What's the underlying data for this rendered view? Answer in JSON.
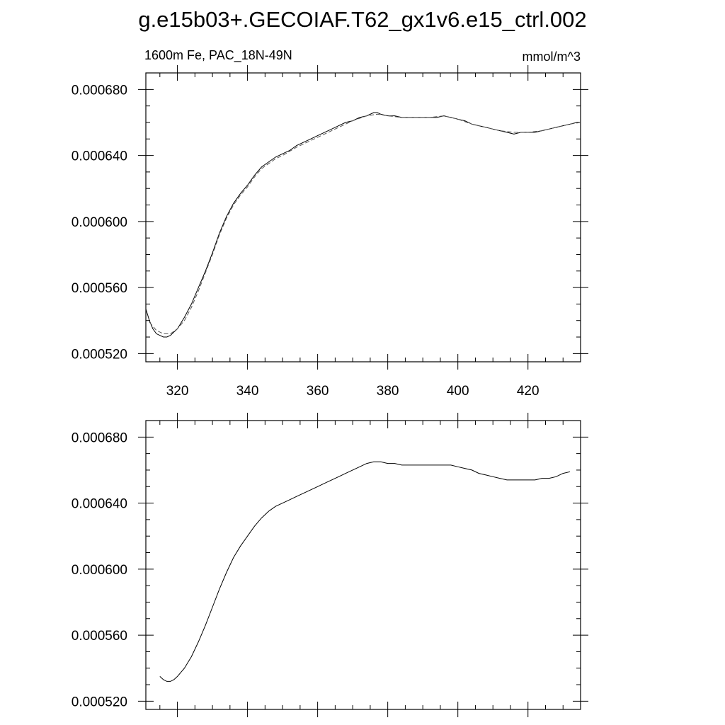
{
  "figure": {
    "title": "g.e15b03+.GECOIAF.T62_gx1v6.e15_ctrl.002"
  },
  "chart_data": [
    {
      "type": "line",
      "title": "g.e15b03+.GECOIAF.T62_gx1v6.e15_ctrl.002",
      "subtitle_left": "1600m Fe, PAC_18N-49N",
      "subtitle_right": "mmol/m^3",
      "xlabel": "",
      "ylabel": "",
      "xlim": [
        311,
        435
      ],
      "ylim": [
        0.000515,
        0.00069
      ],
      "xticks": [
        320,
        340,
        360,
        380,
        400,
        420
      ],
      "xtick_labels": [
        "320",
        "340",
        "360",
        "380",
        "400",
        "420"
      ],
      "yticks": [
        0.00052,
        0.00056,
        0.0006,
        0.00064,
        0.00068
      ],
      "ytick_labels": [
        "0.000520",
        "0.000560",
        "0.000600",
        "0.000640",
        "0.000680"
      ],
      "grid": false,
      "series": [
        {
          "style": "solid",
          "x": [
            311,
            312,
            313,
            314,
            315,
            316,
            317,
            318,
            319,
            320,
            322,
            324,
            326,
            328,
            330,
            332,
            334,
            336,
            338,
            340,
            342,
            344,
            346,
            348,
            350,
            352,
            354,
            356,
            358,
            360,
            362,
            364,
            366,
            368,
            370,
            372,
            374,
            376,
            377,
            378,
            380,
            382,
            384,
            386,
            388,
            390,
            392,
            394,
            396,
            398,
            400,
            402,
            404,
            406,
            408,
            410,
            412,
            414,
            416,
            418,
            420,
            422,
            424,
            426,
            428,
            430,
            432,
            434,
            435
          ],
          "y": [
            0.000547,
            0.00054,
            0.000535,
            0.000532,
            0.000531,
            0.00053,
            0.00053,
            0.000531,
            0.000533,
            0.000535,
            0.000542,
            0.00055,
            0.00056,
            0.00057,
            0.000581,
            0.000593,
            0.000603,
            0.000611,
            0.000617,
            0.000622,
            0.000628,
            0.000633,
            0.000636,
            0.000639,
            0.000641,
            0.000643,
            0.000646,
            0.000648,
            0.00065,
            0.000652,
            0.000654,
            0.000656,
            0.000658,
            0.00066,
            0.000661,
            0.000663,
            0.000664,
            0.000666,
            0.000666,
            0.000665,
            0.000664,
            0.000664,
            0.000663,
            0.000663,
            0.000663,
            0.000663,
            0.000663,
            0.000663,
            0.000664,
            0.000663,
            0.000662,
            0.000661,
            0.000659,
            0.000658,
            0.000657,
            0.000656,
            0.000655,
            0.000654,
            0.000653,
            0.000654,
            0.000654,
            0.000654,
            0.000655,
            0.000656,
            0.000657,
            0.000658,
            0.000659,
            0.00066,
            0.00066
          ]
        },
        {
          "style": "dashed",
          "x": [
            312,
            314,
            316,
            318,
            320,
            322,
            324,
            326,
            328,
            330,
            332,
            334,
            336,
            338,
            340,
            342,
            344,
            346,
            348,
            350,
            354,
            358,
            362,
            366,
            370,
            374,
            377,
            380,
            384,
            388,
            392,
            396,
            400,
            404,
            408,
            412,
            416,
            420,
            424,
            428,
            432,
            435
          ],
          "y": [
            0.000539,
            0.000534,
            0.000532,
            0.000532,
            0.000535,
            0.00054,
            0.000548,
            0.000558,
            0.000569,
            0.00058,
            0.000592,
            0.000602,
            0.00061,
            0.000616,
            0.000621,
            0.000627,
            0.000632,
            0.000635,
            0.000638,
            0.00064,
            0.000645,
            0.000649,
            0.000653,
            0.000657,
            0.000661,
            0.000664,
            0.000665,
            0.000664,
            0.000663,
            0.000663,
            0.000663,
            0.000664,
            0.000662,
            0.000659,
            0.000657,
            0.000655,
            0.000654,
            0.000654,
            0.000655,
            0.000657,
            0.000659,
            0.00066
          ]
        }
      ]
    },
    {
      "type": "line",
      "title": "",
      "xlabel": "",
      "ylabel": "",
      "xlim": [
        311,
        435
      ],
      "ylim": [
        0.000515,
        0.00069
      ],
      "xticks": [
        320,
        340,
        360,
        380,
        400,
        420
      ],
      "xtick_labels": [],
      "yticks": [
        0.00052,
        0.00056,
        0.0006,
        0.00064,
        0.00068
      ],
      "ytick_labels": [
        "0.000520",
        "0.000560",
        "0.000600",
        "0.000640",
        "0.000680"
      ],
      "grid": false,
      "series": [
        {
          "style": "solid",
          "x": [
            315,
            316,
            317,
            318,
            319,
            320,
            322,
            324,
            326,
            328,
            330,
            332,
            334,
            336,
            338,
            340,
            342,
            344,
            346,
            348,
            350,
            352,
            354,
            356,
            358,
            360,
            362,
            364,
            366,
            368,
            370,
            372,
            374,
            376,
            377,
            378,
            380,
            382,
            384,
            386,
            388,
            390,
            392,
            394,
            396,
            398,
            400,
            402,
            404,
            406,
            408,
            410,
            412,
            414,
            416,
            418,
            420,
            422,
            424,
            426,
            428,
            430,
            432
          ],
          "y": [
            0.000535,
            0.000533,
            0.000532,
            0.000532,
            0.000533,
            0.000535,
            0.00054,
            0.000547,
            0.000556,
            0.000566,
            0.000577,
            0.000588,
            0.000598,
            0.000607,
            0.000614,
            0.00062,
            0.000626,
            0.000631,
            0.000635,
            0.000638,
            0.00064,
            0.000642,
            0.000644,
            0.000646,
            0.000648,
            0.00065,
            0.000652,
            0.000654,
            0.000656,
            0.000658,
            0.00066,
            0.000662,
            0.000664,
            0.000665,
            0.000665,
            0.000665,
            0.000664,
            0.000664,
            0.000663,
            0.000663,
            0.000663,
            0.000663,
            0.000663,
            0.000663,
            0.000663,
            0.000663,
            0.000662,
            0.000661,
            0.00066,
            0.000658,
            0.000657,
            0.000656,
            0.000655,
            0.000654,
            0.000654,
            0.000654,
            0.000654,
            0.000654,
            0.000655,
            0.000655,
            0.000656,
            0.000658,
            0.000659
          ]
        }
      ]
    }
  ]
}
